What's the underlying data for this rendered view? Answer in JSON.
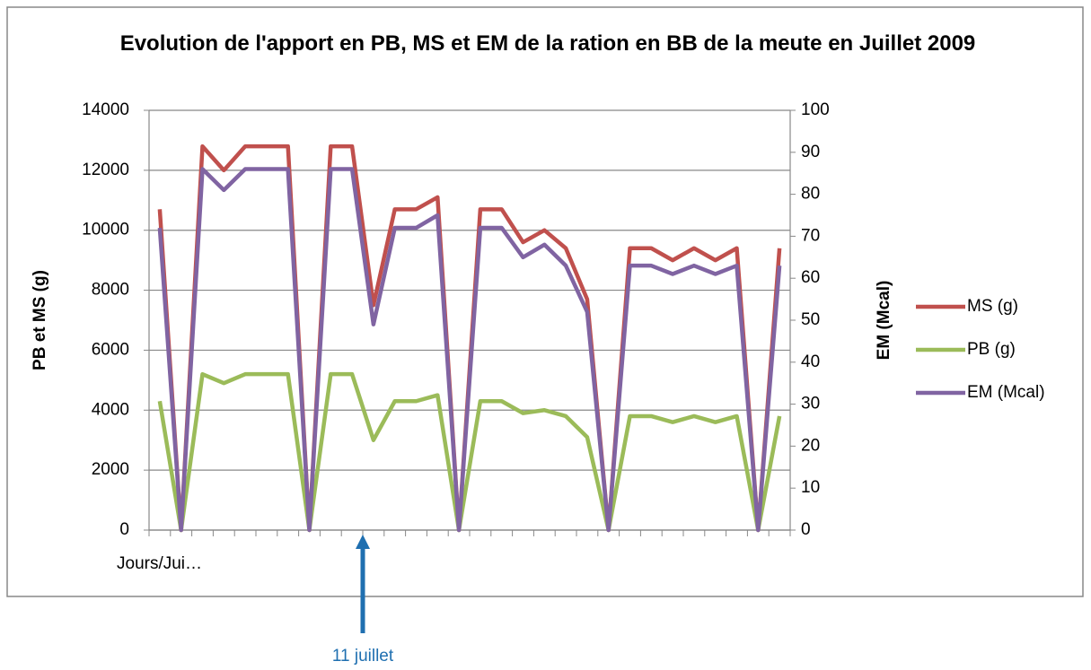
{
  "chart_data": {
    "type": "line",
    "title": "Evolution de l'apport en PB, MS et EM de la ration en BB de la meute en Juillet 2009",
    "ylabel": "PB et MS (g)",
    "y2label": "EM (Mcal)",
    "categories": [
      "Jours/Jui…",
      null,
      null,
      null,
      null,
      null,
      null,
      null,
      null,
      null,
      null,
      null,
      null,
      null,
      null,
      null,
      null,
      null,
      null,
      null,
      null,
      null,
      null,
      null,
      null,
      null,
      null,
      null,
      null,
      null
    ],
    "series": [
      {
        "name": "MS (g)",
        "color": "#c0504d",
        "values": [
          10700,
          0,
          12800,
          12000,
          12800,
          12800,
          12800,
          0,
          12800,
          12800,
          7500,
          10700,
          10700,
          11100,
          0,
          10700,
          10700,
          9600,
          10000,
          9400,
          7700,
          0,
          9400,
          9400,
          9000,
          9400,
          9000,
          9400,
          0,
          9400
        ]
      },
      {
        "name": "PB (g)",
        "color": "#9bbb59",
        "values": [
          4300,
          0,
          5200,
          4900,
          5200,
          5200,
          5200,
          0,
          5200,
          5200,
          3000,
          4300,
          4300,
          4500,
          0,
          4300,
          4300,
          3900,
          4000,
          3800,
          3100,
          0,
          3800,
          3800,
          3600,
          3800,
          3600,
          3800,
          0,
          3800
        ]
      },
      {
        "name": "EM (Mcal)",
        "color": "#8064a2",
        "axis": "y2",
        "values": [
          72,
          0,
          86,
          81,
          86,
          86,
          86,
          0,
          86,
          86,
          49,
          72,
          72,
          75,
          0,
          72,
          72,
          65,
          68,
          63,
          52,
          0,
          63,
          63,
          61,
          63,
          61,
          63,
          0,
          63
        ]
      }
    ],
    "ylim": [
      0,
      14000
    ],
    "yticks": [
      0,
      2000,
      4000,
      6000,
      8000,
      10000,
      12000,
      14000
    ],
    "y2lim": [
      0,
      100
    ],
    "y2ticks": [
      0,
      10,
      20,
      30,
      40,
      50,
      60,
      70,
      80,
      90,
      100
    ],
    "grid": true,
    "legend": "right",
    "annotation": {
      "text": "11 juillet",
      "category_index": 9,
      "color": "#1f6fb0"
    }
  }
}
